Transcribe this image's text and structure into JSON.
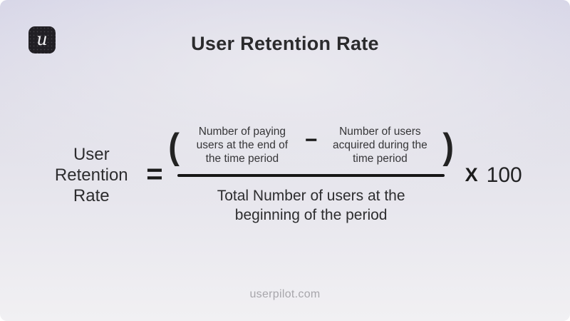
{
  "colors": {
    "background_top": "#d8d7e8",
    "background_bottom": "#f1f0f3",
    "logo_background": "#211f24",
    "logo_letter": "#f5f4f6",
    "text_dark": "#2d2d2f",
    "formula_ink": "#161616",
    "footer_gray": "#a7a6ab"
  },
  "logo": {
    "letter": "u"
  },
  "header": {
    "title": "User Retention Rate"
  },
  "formula": {
    "lhs": "User\nRetention\nRate",
    "equals_sign": "=",
    "open_paren": "(",
    "numerator_term_1": "Number of paying\nusers at the end of\nthe time period",
    "minus_sign": "−",
    "numerator_term_2": "Number of users\nacquired during the\ntime period",
    "close_paren": ")",
    "denominator": "Total Number of users at the\nbeginning of the period",
    "multiply_sign": "X",
    "multiplier": "100"
  },
  "footer": {
    "website": "userpilot.com"
  }
}
